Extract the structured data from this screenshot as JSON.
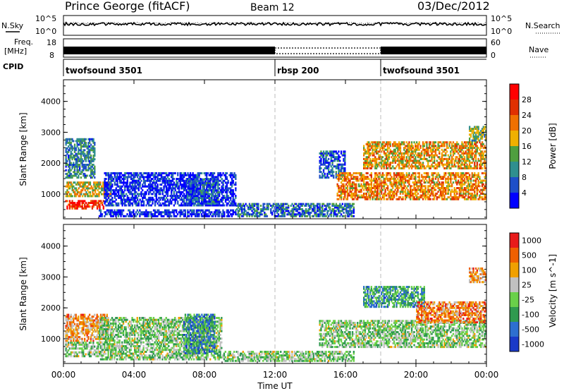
{
  "header": {
    "station": "Prince George (fitACF)",
    "beam": "Beam 12",
    "date": "03/Dec/2012"
  },
  "strip_labels": {
    "nsky": "N.Sky",
    "nsky_top": "10^5",
    "nsky_bottom": "10^0",
    "nsearch": "N.Search",
    "nsearch_top": "10^5",
    "nsearch_bottom": "10^0",
    "freq_line1": "Freq.",
    "freq_line2": "[MHz]",
    "freq_top": "18",
    "freq_bottom": "8",
    "nave": "Nave",
    "nave_top": "60",
    "nave_bottom": "0",
    "cpid": "CPID"
  },
  "cpid_segments": [
    {
      "label": "twofsound 3501",
      "start_hour": 0
    },
    {
      "label": "rbsp 200",
      "start_hour": 12
    },
    {
      "label": "twofsound 3501",
      "start_hour": 18
    }
  ],
  "x_axis": {
    "label": "Time UT",
    "tick_hours": [
      0,
      4,
      8,
      12,
      16,
      20,
      24
    ],
    "tick_labels": [
      "00:00",
      "04:00",
      "08:00",
      "12:00",
      "16:00",
      "20:00",
      "00:00"
    ]
  },
  "colors": {
    "power_scale": [
      "#0000ff",
      "#1e4fc8",
      "#2f8f8f",
      "#4f9f3f",
      "#f0b000",
      "#f07000",
      "#e03000",
      "#ff0000"
    ],
    "velocity_scale": [
      "#1a3ac8",
      "#2d6fd0",
      "#2f9a4f",
      "#6ad04a",
      "#c0c0c0",
      "#f0a000",
      "#f06000",
      "#e81a1a"
    ],
    "gate_line": "#bbbbbb"
  },
  "chart_data": [
    {
      "type": "heatmap",
      "panel": "power",
      "ylabel": "Slant Range [km]",
      "xlabel": "Time UT",
      "xlim": [
        0,
        24
      ],
      "ylim": [
        200,
        4700
      ],
      "y_ticks": [
        1000,
        2000,
        3000,
        4000
      ],
      "colorbar_label": "Power [dB]",
      "colorbar_ticks": [
        "4",
        "8",
        "12",
        "16",
        "20",
        "24",
        "28"
      ],
      "colorbar_range": [
        0,
        32
      ],
      "regions": [
        {
          "t0": 0.1,
          "t1": 2.7,
          "r0": 900,
          "r1": 1400,
          "level": 0.55
        },
        {
          "t0": 0.1,
          "t1": 2.3,
          "r0": 500,
          "r1": 800,
          "level": 0.85
        },
        {
          "t0": 0.1,
          "t1": 1.8,
          "r0": 1500,
          "r1": 2800,
          "level": 0.3
        },
        {
          "t0": 2.0,
          "t1": 9.8,
          "r0": 250,
          "r1": 500,
          "level": 0.1
        },
        {
          "t0": 2.3,
          "t1": 9.8,
          "r0": 600,
          "r1": 1700,
          "level": 0.1
        },
        {
          "t0": 7.0,
          "t1": 8.8,
          "r0": 600,
          "r1": 1500,
          "level": 0.2
        },
        {
          "t0": 9.8,
          "t1": 16.5,
          "r0": 250,
          "r1": 700,
          "level": 0.25
        },
        {
          "t0": 14.5,
          "t1": 16.0,
          "r0": 1500,
          "r1": 2400,
          "level": 0.2
        },
        {
          "t0": 15.5,
          "t1": 24.0,
          "r0": 800,
          "r1": 1700,
          "level": 0.65
        },
        {
          "t0": 17.0,
          "t1": 24.0,
          "r0": 1800,
          "r1": 2700,
          "level": 0.6
        },
        {
          "t0": 23.0,
          "t1": 24.0,
          "r0": 2700,
          "r1": 3200,
          "level": 0.4
        }
      ]
    },
    {
      "type": "heatmap",
      "panel": "velocity",
      "ylabel": "Slant Range [km]",
      "xlabel": "Time UT",
      "xlim": [
        0,
        24
      ],
      "ylim": [
        200,
        4700
      ],
      "y_ticks": [
        1000,
        2000,
        3000,
        4000
      ],
      "colorbar_label": "Velocity [m s^-1]",
      "colorbar_ticks": [
        "1000",
        "500",
        "100",
        "25",
        "-25",
        "-100",
        "-500",
        "-1000"
      ],
      "colorbar_range": [
        -1000,
        1000
      ],
      "regions": [
        {
          "t0": 0.1,
          "t1": 2.5,
          "r0": 900,
          "r1": 1800,
          "level": 0.7
        },
        {
          "t0": 0.1,
          "t1": 2.0,
          "r0": 400,
          "r1": 900,
          "level": 0.45
        },
        {
          "t0": 2.0,
          "t1": 9.0,
          "r0": 300,
          "r1": 1700,
          "level": 0.45
        },
        {
          "t0": 6.8,
          "t1": 8.6,
          "r0": 500,
          "r1": 1800,
          "level": 0.25
        },
        {
          "t0": 9.0,
          "t1": 16.5,
          "r0": 250,
          "r1": 600,
          "level": 0.45
        },
        {
          "t0": 14.5,
          "t1": 24.0,
          "r0": 700,
          "r1": 1600,
          "level": 0.45
        },
        {
          "t0": 17.0,
          "t1": 20.5,
          "r0": 2000,
          "r1": 2700,
          "level": 0.3
        },
        {
          "t0": 20.0,
          "t1": 24.0,
          "r0": 1500,
          "r1": 2200,
          "level": 0.75
        },
        {
          "t0": 23.0,
          "t1": 24.0,
          "r0": 2800,
          "r1": 3300,
          "level": 0.7
        }
      ]
    }
  ]
}
